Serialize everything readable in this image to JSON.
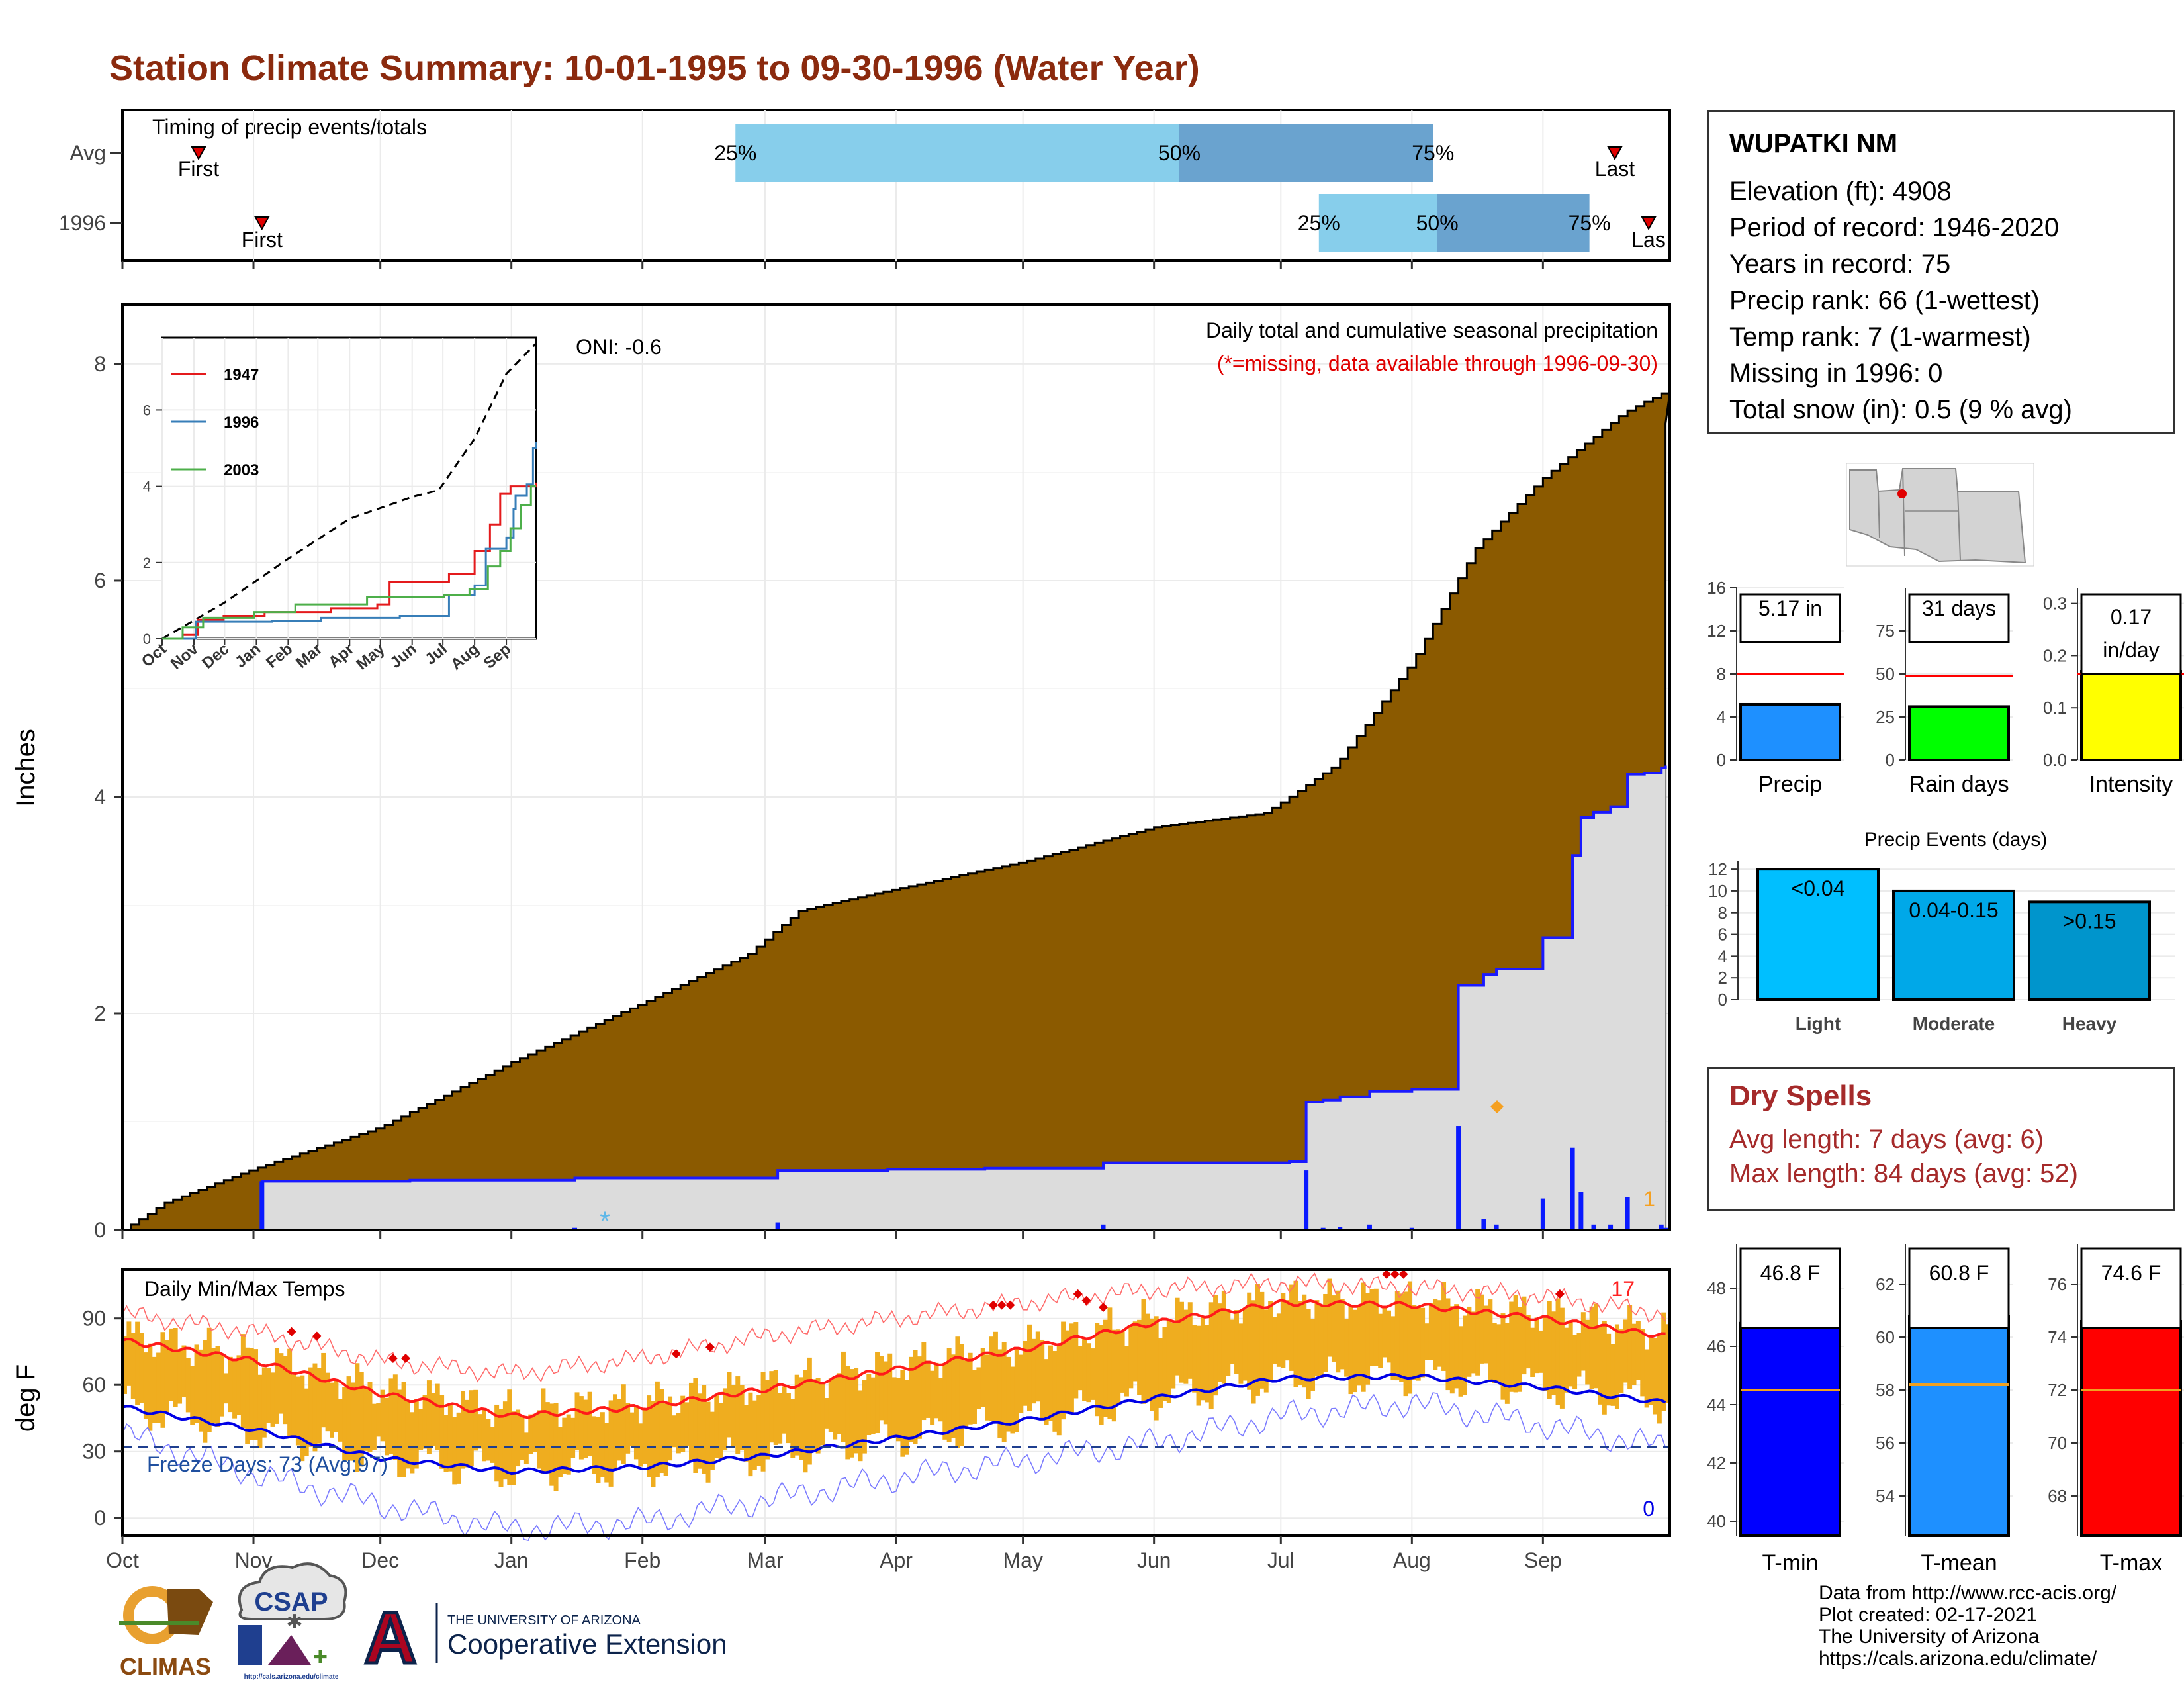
{
  "title": "Station Climate Summary: 10-01-1995 to 09-30-1996 (Water Year)",
  "timing": {
    "label": "Timing of precip events/totals",
    "rows": [
      "Avg",
      "1996"
    ],
    "first_label": "First",
    "last_label": "Last",
    "last_label_cut": "Las",
    "pct_labels": [
      "25%",
      "50%",
      "75%"
    ],
    "avg": {
      "first": 18,
      "last": 353,
      "p25": 145,
      "p50": 250,
      "p75": 310
    },
    "y1996": {
      "first": 33,
      "last": 361,
      "p25": 283,
      "p50": 311,
      "p75": 347
    }
  },
  "precip_panel": {
    "title": "Daily total and cumulative seasonal precipitation",
    "subtitle": "(*=missing, data available through 1996-09-30)",
    "oni": "ONI: -0.6",
    "ylabel": "Inches",
    "yticks": [
      "0",
      "2",
      "4",
      "6",
      "8"
    ],
    "count_label": "1",
    "colors": {
      "avg_fill": "#8b5a00",
      "year_fill": "#dcdcdc",
      "year_line": "#1a1aff",
      "bar": "#0a1aff",
      "marker": "#f5a020"
    }
  },
  "inset": {
    "series": [
      "1947",
      "1996",
      "2003"
    ],
    "colors": [
      "#e41a1c",
      "#377eb8",
      "#4daf4a"
    ],
    "yticks": [
      "0",
      "2",
      "4",
      "6"
    ],
    "months": [
      "Oct",
      "Nov",
      "Dec",
      "Jan",
      "Feb",
      "Mar",
      "Apr",
      "May",
      "Jun",
      "Jul",
      "Aug",
      "Sep"
    ]
  },
  "temp_panel": {
    "title": "Daily Min/Max Temps",
    "ylabel": "deg F",
    "yticks": [
      "0",
      "30",
      "60",
      "90"
    ],
    "freeze_label": "Freeze Days: 73 (Avg:97)",
    "record_high_count": "17",
    "record_low_count": "0"
  },
  "months": [
    "Oct",
    "Nov",
    "Dec",
    "Jan",
    "Feb",
    "Mar",
    "Apr",
    "May",
    "Jun",
    "Jul",
    "Aug",
    "Sep"
  ],
  "station": {
    "name": "WUPATKI NM",
    "lines": [
      "Elevation (ft): 4908",
      "Period of record: 1946-2020",
      "Years in record: 75",
      "Precip rank: 66 (1-wettest)",
      "Temp rank: 7 (1-warmest)",
      "Missing in 1996: 0",
      "Total snow (in): 0.5 (9 % avg)"
    ]
  },
  "summary_bars": [
    {
      "label": "Precip",
      "value_label": "5.17 in",
      "value": 5.17,
      "avg": 8,
      "yticks": [
        "0",
        "4",
        "8",
        "12",
        "16"
      ],
      "ymax": 16,
      "color": "#1e90ff"
    },
    {
      "label": "Rain days",
      "value_label": "31 days",
      "value": 31,
      "avg": 49,
      "yticks": [
        "0",
        "25",
        "50",
        "75"
      ],
      "ymax": 100,
      "color": "#00ff00"
    },
    {
      "label": "Intensity",
      "value_label": "0.17 in/day",
      "value_l1": "0.17",
      "value_l2": "in/day",
      "value": 0.17,
      "avg": 0.165,
      "yticks": [
        "0.0",
        "0.1",
        "0.2",
        "0.3"
      ],
      "ymax": 0.33,
      "color": "#ffff00"
    }
  ],
  "precip_events": {
    "title": "Precip Events (days)",
    "yticks": [
      "0",
      "2",
      "4",
      "6",
      "8",
      "10",
      "12"
    ],
    "categories": [
      "Light",
      "Moderate",
      "Heavy"
    ],
    "bar_labels": [
      "<0.04",
      "0.04-0.15",
      ">0.15"
    ],
    "values": [
      12,
      10,
      9
    ],
    "colors": [
      "#00bfff",
      "#00a8e8",
      "#0095cc"
    ]
  },
  "dry_spells": {
    "title": "Dry Spells",
    "lines": [
      "Avg length: 7 days (avg: 6)",
      "Max length: 84 days (avg: 52)"
    ]
  },
  "temp_bars": [
    {
      "label": "T-min",
      "value_label": "46.8 F",
      "value": 46.8,
      "avg": 44.5,
      "yticks": [
        "40",
        "42",
        "44",
        "46",
        "48"
      ],
      "ymin": 39.5,
      "ymax": 49.5,
      "color": "#0000ff"
    },
    {
      "label": "T-mean",
      "value_label": "60.8 F",
      "value": 60.8,
      "avg": 58.2,
      "yticks": [
        "54",
        "56",
        "58",
        "60",
        "62"
      ],
      "ymin": 52.5,
      "ymax": 63.5,
      "color": "#1e90ff"
    },
    {
      "label": "T-max",
      "value_label": "74.6 F",
      "value": 74.6,
      "avg": 72,
      "yticks": [
        "68",
        "70",
        "72",
        "74",
        "76"
      ],
      "ymin": 66.5,
      "ymax": 77.5,
      "color": "#ff0000"
    }
  ],
  "logos": {
    "climas": "CLIMAS",
    "csap": "CSAP",
    "csap_url": "http://cals.arizona.edu/climate",
    "ua_small": "THE UNIVERSITY OF ARIZONA",
    "ua_big": "Cooperative Extension",
    "ua_mark": "A"
  },
  "credits": [
    "Data from http://www.rcc-acis.org/",
    "Plot created: 02-17-2021",
    "The University of Arizona",
    "https://cals.arizona.edu/climate/"
  ]
}
